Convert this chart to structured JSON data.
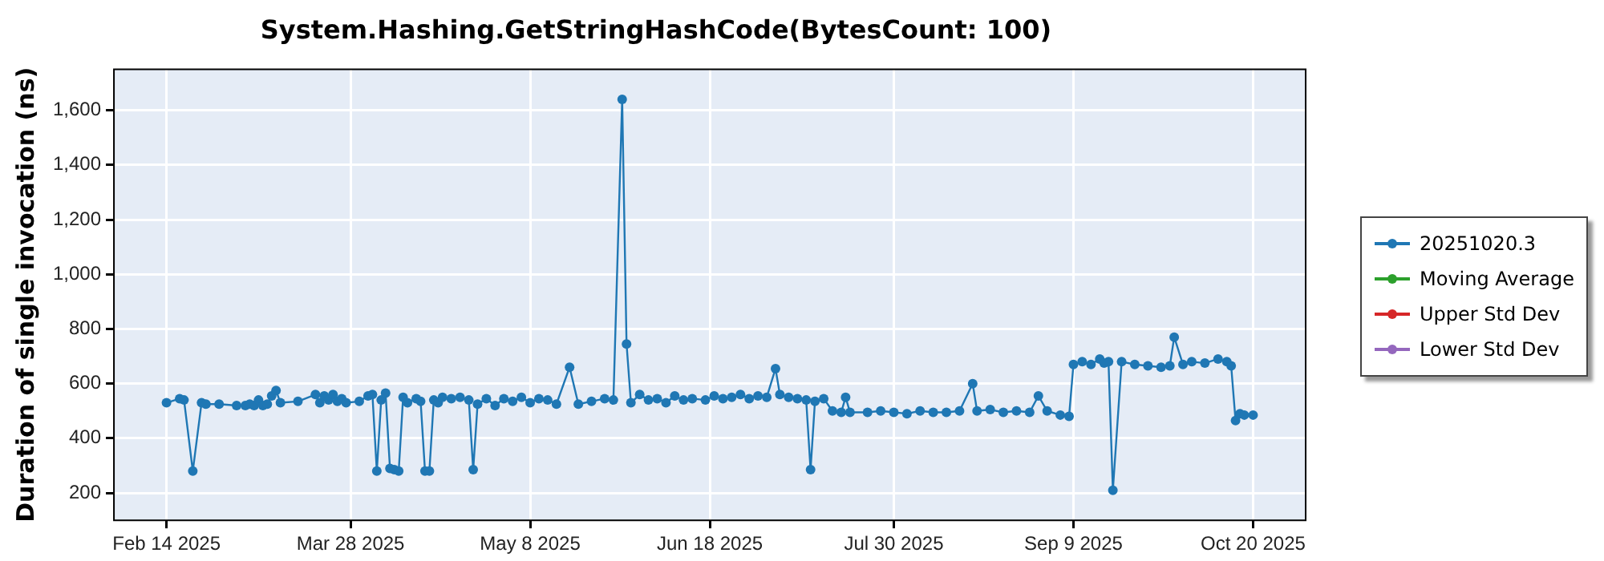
{
  "chart_data": {
    "type": "line",
    "title": "System.Hashing.GetStringHashCode(BytesCount: 100)",
    "ylabel": "Duration of single invocation (ns)",
    "x": [
      "2025-02-14",
      "2025-02-17",
      "2025-02-18",
      "2025-02-20",
      "2025-02-22",
      "2025-02-23",
      "2025-02-26",
      "2025-03-02",
      "2025-03-04",
      "2025-03-05",
      "2025-03-06",
      "2025-03-07",
      "2025-03-08",
      "2025-03-09",
      "2025-03-10",
      "2025-03-11",
      "2025-03-12",
      "2025-03-16",
      "2025-03-20",
      "2025-03-21",
      "2025-03-22",
      "2025-03-23",
      "2025-03-24",
      "2025-03-25",
      "2025-03-26",
      "2025-03-27",
      "2025-03-30",
      "2025-04-01",
      "2025-04-02",
      "2025-04-03",
      "2025-04-04",
      "2025-04-05",
      "2025-04-06",
      "2025-04-07",
      "2025-04-08",
      "2025-04-09",
      "2025-04-10",
      "2025-04-12",
      "2025-04-13",
      "2025-04-14",
      "2025-04-15",
      "2025-04-16",
      "2025-04-17",
      "2025-04-18",
      "2025-04-20",
      "2025-04-22",
      "2025-04-24",
      "2025-04-25",
      "2025-04-26",
      "2025-04-28",
      "2025-04-30",
      "2025-05-02",
      "2025-05-04",
      "2025-05-06",
      "2025-05-08",
      "2025-05-10",
      "2025-05-12",
      "2025-05-14",
      "2025-05-17",
      "2025-05-19",
      "2025-05-22",
      "2025-05-25",
      "2025-05-27",
      "2025-05-29",
      "2025-05-30",
      "2025-05-31",
      "2025-06-02",
      "2025-06-04",
      "2025-06-06",
      "2025-06-08",
      "2025-06-10",
      "2025-06-12",
      "2025-06-14",
      "2025-06-17",
      "2025-06-19",
      "2025-06-21",
      "2025-06-23",
      "2025-06-25",
      "2025-06-27",
      "2025-06-29",
      "2025-07-01",
      "2025-07-03",
      "2025-07-04",
      "2025-07-06",
      "2025-07-08",
      "2025-07-10",
      "2025-07-11",
      "2025-07-12",
      "2025-07-14",
      "2025-07-16",
      "2025-07-18",
      "2025-07-19",
      "2025-07-20",
      "2025-07-24",
      "2025-07-27",
      "2025-07-30",
      "2025-08-02",
      "2025-08-05",
      "2025-08-08",
      "2025-08-11",
      "2025-08-14",
      "2025-08-17",
      "2025-08-18",
      "2025-08-21",
      "2025-08-24",
      "2025-08-27",
      "2025-08-30",
      "2025-09-01",
      "2025-09-03",
      "2025-09-06",
      "2025-09-08",
      "2025-09-09",
      "2025-09-11",
      "2025-09-13",
      "2025-09-15",
      "2025-09-16",
      "2025-09-17",
      "2025-09-18",
      "2025-09-20",
      "2025-09-23",
      "2025-09-26",
      "2025-09-29",
      "2025-10-01",
      "2025-10-02",
      "2025-10-04",
      "2025-10-06",
      "2025-10-09",
      "2025-10-12",
      "2025-10-14",
      "2025-10-15",
      "2025-10-16",
      "2025-10-17",
      "2025-10-18",
      "2025-10-20"
    ],
    "series": [
      {
        "name": "20251020.3",
        "color": "#1f77b4",
        "values": [
          530,
          545,
          540,
          280,
          530,
          525,
          525,
          520,
          520,
          525,
          520,
          540,
          520,
          525,
          555,
          575,
          530,
          535,
          560,
          530,
          555,
          540,
          560,
          535,
          545,
          530,
          535,
          555,
          560,
          280,
          540,
          565,
          290,
          285,
          280,
          550,
          530,
          545,
          535,
          280,
          280,
          540,
          530,
          550,
          545,
          550,
          540,
          285,
          525,
          545,
          520,
          545,
          535,
          550,
          530,
          545,
          540,
          525,
          660,
          525,
          535,
          545,
          540,
          1640,
          745,
          530,
          560,
          540,
          545,
          530,
          555,
          540,
          545,
          540,
          555,
          545,
          550,
          560,
          545,
          555,
          550,
          655,
          560,
          550,
          545,
          540,
          285,
          535,
          545,
          500,
          495,
          550,
          495,
          495,
          500,
          495,
          490,
          500,
          495,
          495,
          500,
          600,
          500,
          505,
          495,
          500,
          495,
          555,
          500,
          485,
          480,
          670,
          680,
          670,
          690,
          675,
          680,
          210,
          680,
          670,
          665,
          660,
          665,
          770,
          670,
          680,
          675,
          690,
          680,
          665,
          465,
          490,
          485,
          485
        ]
      },
      {
        "name": "Moving Average",
        "color": "#2ca02c",
        "values": [
          null,
          null,
          null,
          null,
          null,
          null,
          null,
          null,
          null,
          null,
          null,
          null,
          null,
          null,
          null,
          null,
          null,
          null,
          null,
          null,
          null,
          null,
          null,
          null,
          null,
          null,
          null,
          null,
          null,
          null,
          null,
          null,
          null,
          null,
          null,
          null,
          null,
          null,
          null,
          null,
          null,
          null,
          null,
          null,
          null,
          null,
          null,
          null,
          null,
          null,
          null,
          null,
          null,
          null,
          null,
          null,
          null,
          null,
          null,
          null,
          null,
          null,
          null,
          null,
          null,
          null,
          null,
          null,
          null,
          null,
          null,
          null,
          null,
          null,
          null,
          null,
          null,
          null,
          null,
          null,
          null,
          null,
          null,
          null,
          null,
          null,
          null,
          null,
          null,
          null,
          null,
          null,
          null,
          null,
          null,
          null,
          null,
          null,
          null,
          null,
          null,
          null,
          null,
          null,
          null,
          null,
          null,
          null,
          null,
          null,
          null,
          null,
          null,
          null,
          null,
          null,
          null,
          null,
          null,
          null,
          null,
          null,
          null,
          null,
          null,
          null,
          null,
          null,
          null,
          null,
          null,
          null,
          null,
          null
        ]
      },
      {
        "name": "Upper Std Dev",
        "color": "#d62728",
        "values": [
          null,
          null,
          null,
          null,
          null,
          null,
          null,
          null,
          null,
          null,
          null,
          null,
          null,
          null,
          null,
          null,
          null,
          null,
          null,
          null,
          null,
          null,
          null,
          null,
          null,
          null,
          null,
          null,
          null,
          null,
          null,
          null,
          null,
          null,
          null,
          null,
          null,
          null,
          null,
          null,
          null,
          null,
          null,
          null,
          null,
          null,
          null,
          null,
          null,
          null,
          null,
          null,
          null,
          null,
          null,
          null,
          null,
          null,
          null,
          null,
          null,
          null,
          null,
          null,
          null,
          null,
          null,
          null,
          null,
          null,
          null,
          null,
          null,
          null,
          null,
          null,
          null,
          null,
          null,
          null,
          null,
          null,
          null,
          null,
          null,
          null,
          null,
          null,
          null,
          null,
          null,
          null,
          null,
          null,
          null,
          null,
          null,
          null,
          null,
          null,
          null,
          null,
          null,
          null,
          null,
          null,
          null,
          null,
          null,
          null,
          null,
          null,
          null,
          null,
          null,
          null,
          null,
          null,
          null,
          null,
          null,
          null,
          null,
          null,
          null,
          null,
          null,
          null,
          null,
          null,
          null,
          null,
          null,
          null
        ]
      },
      {
        "name": "Lower Std Dev",
        "color": "#9467bd",
        "values": [
          null,
          null,
          null,
          null,
          null,
          null,
          null,
          null,
          null,
          null,
          null,
          null,
          null,
          null,
          null,
          null,
          null,
          null,
          null,
          null,
          null,
          null,
          null,
          null,
          null,
          null,
          null,
          null,
          null,
          null,
          null,
          null,
          null,
          null,
          null,
          null,
          null,
          null,
          null,
          null,
          null,
          null,
          null,
          null,
          null,
          null,
          null,
          null,
          null,
          null,
          null,
          null,
          null,
          null,
          null,
          null,
          null,
          null,
          null,
          null,
          null,
          null,
          null,
          null,
          null,
          null,
          null,
          null,
          null,
          null,
          null,
          null,
          null,
          null,
          null,
          null,
          null,
          null,
          null,
          null,
          null,
          null,
          null,
          null,
          null,
          null,
          null,
          null,
          null,
          null,
          null,
          null,
          null,
          null,
          null,
          null,
          null,
          null,
          null,
          null,
          null,
          null,
          null,
          null,
          null,
          null,
          null,
          null,
          null,
          null,
          null,
          null,
          null,
          null,
          null,
          null,
          null,
          null,
          null,
          null,
          null,
          null,
          null,
          null,
          null,
          null,
          null,
          null,
          null,
          null,
          null,
          null,
          null,
          null
        ]
      }
    ],
    "xlim": [
      "2025-02-02",
      "2025-11-01"
    ],
    "xticks": [
      {
        "value": "2025-02-14",
        "label": "Feb 14 2025"
      },
      {
        "value": "2025-03-28",
        "label": "Mar 28 2025"
      },
      {
        "value": "2025-05-08",
        "label": "May 8 2025"
      },
      {
        "value": "2025-06-18",
        "label": "Jun 18 2025"
      },
      {
        "value": "2025-07-30",
        "label": "Jul 30 2025"
      },
      {
        "value": "2025-09-09",
        "label": "Sep 9 2025"
      },
      {
        "value": "2025-10-20",
        "label": "Oct 20 2025"
      }
    ],
    "ylim": [
      100,
      1750
    ],
    "yticks": [
      {
        "value": 200,
        "label": "200"
      },
      {
        "value": 400,
        "label": "400"
      },
      {
        "value": 600,
        "label": "600"
      },
      {
        "value": 800,
        "label": "800"
      },
      {
        "value": 1000,
        "label": "1,000"
      },
      {
        "value": 1200,
        "label": "1,200"
      },
      {
        "value": 1400,
        "label": "1,400"
      },
      {
        "value": 1600,
        "label": "1,600"
      }
    ],
    "grid": true,
    "legend": "right",
    "marker": "circle",
    "line_style": "solid"
  }
}
